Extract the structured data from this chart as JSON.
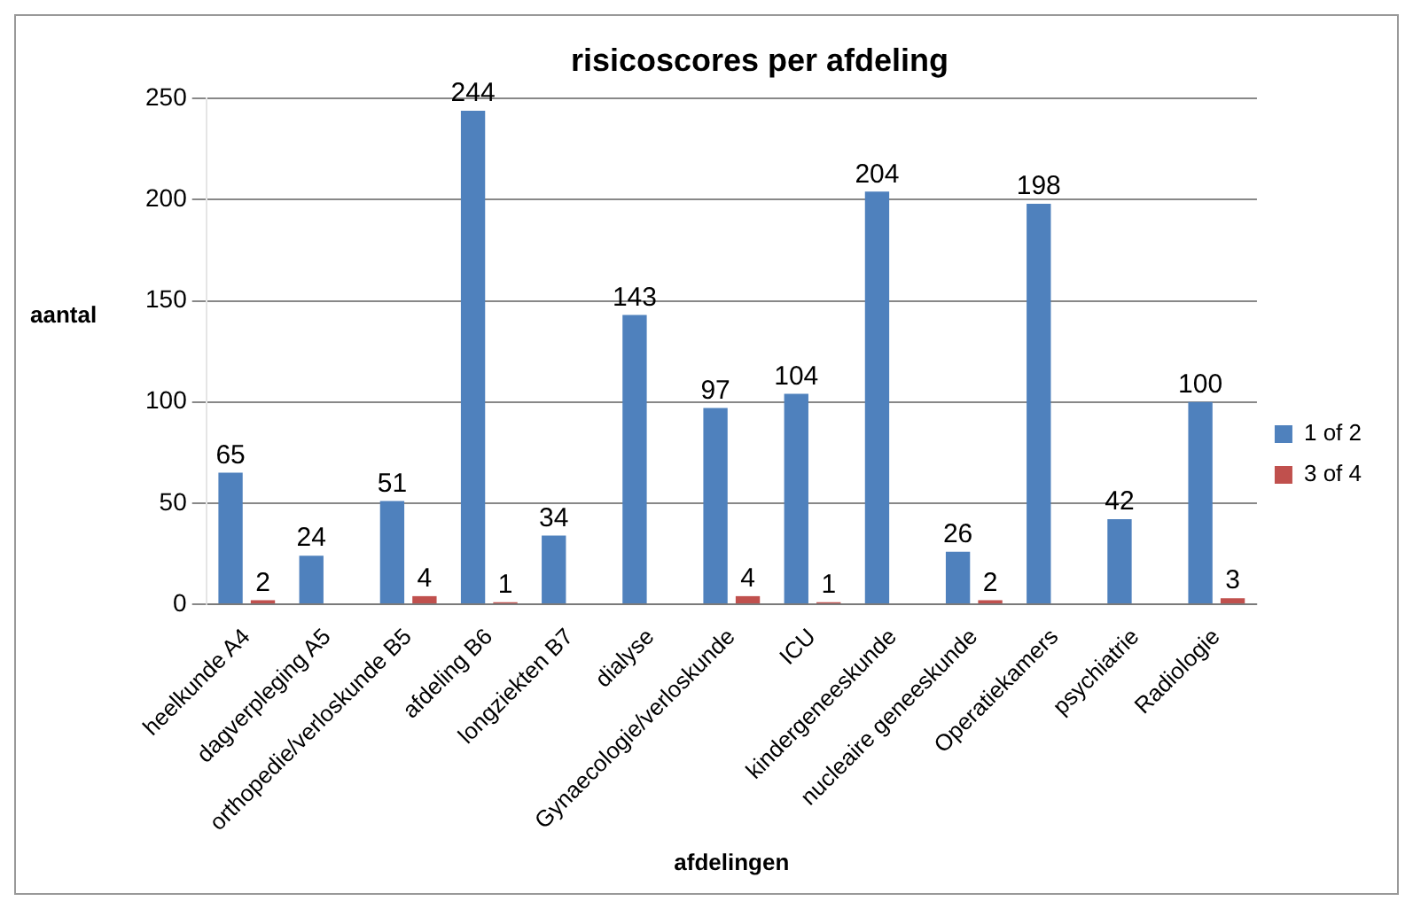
{
  "chart_data": {
    "type": "bar",
    "title": "risicoscores per afdeling",
    "xlabel": "afdelingen",
    "ylabel": "aantal",
    "categories": [
      "heelkunde A4",
      "dagverpleging A5",
      "orthopedie/verloskunde B5",
      "afdeling B6",
      "longziekten B7",
      "dialyse",
      "Gynaecologie/verloskunde",
      "ICU",
      "kindergeneeskunde",
      "nucleaire geneeskunde",
      "Operatiekamers",
      "psychiatrie",
      "Radiologie"
    ],
    "series": [
      {
        "name": "1 of 2",
        "color": "#4f81bd",
        "values": [
          65,
          24,
          51,
          244,
          34,
          143,
          97,
          104,
          204,
          26,
          198,
          42,
          100
        ]
      },
      {
        "name": "3 of 4",
        "color": "#c0504d",
        "values": [
          2,
          null,
          4,
          1,
          null,
          null,
          4,
          1,
          null,
          2,
          null,
          null,
          3
        ]
      }
    ],
    "ylim": [
      0,
      250
    ],
    "yticks": [
      0,
      50,
      100,
      150,
      200,
      250
    ],
    "grid": "y",
    "legend": "right",
    "data_labels": true
  }
}
